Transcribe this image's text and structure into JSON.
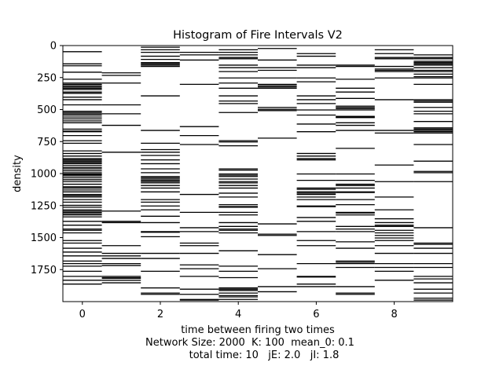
{
  "chart_data": {
    "type": "heatmap",
    "title": "Histogram of Fire Intervals V2",
    "xlabel": "time between firing two times",
    "ylabel": "density",
    "caption_lines": [
      "Network Size: 2000  K: 100  mean_0: 0.1",
      "total time: 10   jE: 2.0   jI: 1.8"
    ],
    "x_ticks": [
      0,
      2,
      4,
      6,
      8
    ],
    "y_ticks": [
      0,
      250,
      500,
      750,
      1000,
      1250,
      1500,
      1750
    ],
    "xlim": [
      -0.5,
      9.5
    ],
    "ylim": [
      0,
      2000
    ],
    "y_inverted": true,
    "columns": [
      {
        "x": 0,
        "rows": [
          45,
          140,
          155,
          205,
          260,
          290,
          300,
          310,
          320,
          330,
          340,
          360,
          370,
          400,
          420,
          460,
          510,
          520,
          530,
          540,
          555,
          570,
          585,
          600,
          650,
          665,
          670,
          700,
          740,
          760,
          820,
          840,
          860,
          880,
          890,
          900,
          910,
          920,
          935,
          950,
          960,
          975,
          990,
          1000,
          1005,
          1015,
          1030,
          1045,
          1060,
          1080,
          1100,
          1110,
          1125,
          1140,
          1160,
          1170,
          1180,
          1200,
          1220,
          1245,
          1260,
          1280,
          1290,
          1300,
          1310,
          1320,
          1335,
          1370,
          1400,
          1430,
          1440,
          1460,
          1520,
          1540,
          1580,
          1610,
          1640,
          1680,
          1700,
          1720,
          1760,
          1800,
          1830,
          1860
        ]
      },
      {
        "x": 1,
        "rows": [
          210,
          230,
          290,
          460,
          530,
          620,
          830,
          1290,
          1370,
          1380,
          1560,
          1620,
          1640,
          1660,
          1700,
          1715,
          1800,
          1810,
          1815,
          1830,
          1850
        ]
      },
      {
        "x": 2,
        "rows": [
          10,
          30,
          50,
          80,
          105,
          130,
          140,
          150,
          160,
          390,
          660,
          760,
          810,
          830,
          855,
          890,
          920,
          960,
          990,
          1020,
          1030,
          1040,
          1050,
          1060,
          1070,
          1090,
          1110,
          1140,
          1200,
          1220,
          1250,
          1280,
          1330,
          1380,
          1450,
          1455,
          1490,
          1620,
          1660,
          1760,
          1890,
          1930,
          1940
        ]
      },
      {
        "x": 3,
        "rows": [
          50,
          70,
          110,
          300,
          630,
          700,
          770,
          1160,
          1300,
          1420,
          1450,
          1540,
          1560,
          1620,
          1710,
          1740,
          1800,
          1900,
          1940,
          1980,
          1985
        ]
      },
      {
        "x": 4,
        "rows": [
          30,
          50,
          70,
          90,
          100,
          150,
          170,
          200,
          250,
          290,
          330,
          390,
          430,
          450,
          520,
          740,
          750,
          780,
          960,
          970,
          1000,
          1010,
          1020,
          1040,
          1060,
          1070,
          1090,
          1110,
          1150,
          1180,
          1240,
          1255,
          1260,
          1300,
          1320,
          1380,
          1410,
          1430,
          1440,
          1460,
          1600,
          1720,
          1760,
          1810,
          1890,
          1900,
          1910,
          1930,
          1950,
          1960,
          1980
        ]
      },
      {
        "x": 5,
        "rows": [
          20,
          110,
          170,
          190,
          250,
          300,
          310,
          320,
          330,
          480,
          495,
          505,
          720,
          1390,
          1470,
          1480,
          1630,
          1740,
          1880,
          1920
        ]
      },
      {
        "x": 6,
        "rows": [
          60,
          80,
          150,
          170,
          250,
          280,
          390,
          420,
          450,
          500,
          540,
          610,
          670,
          840,
          860,
          880,
          890,
          1000,
          1050,
          1110,
          1120,
          1140,
          1150,
          1160,
          1180,
          1200,
          1250,
          1255,
          1340,
          1370,
          1450,
          1520,
          1560,
          1700,
          1800,
          1805,
          1860,
          1880
        ]
      },
      {
        "x": 7,
        "rows": [
          150,
          160,
          260,
          330,
          360,
          410,
          470,
          480,
          490,
          500,
          550,
          555,
          560,
          600,
          620,
          660,
          800,
          1000,
          1050,
          1080,
          1090,
          1110,
          1140,
          1145,
          1200,
          1240,
          1300,
          1305,
          1320,
          1410,
          1430,
          1450,
          1530,
          1580,
          1680,
          1690,
          1700,
          1730,
          1880,
          1930,
          1940
        ]
      },
      {
        "x": 8,
        "rows": [
          30,
          60,
          90,
          100,
          160,
          180,
          190,
          200,
          250,
          420,
          660,
          680,
          930,
          1060,
          1180,
          1280,
          1350,
          1380,
          1400,
          1410,
          1440,
          1460,
          1480,
          1500,
          1520,
          1560,
          1620,
          1700,
          1730,
          1760,
          1830
        ]
      },
      {
        "x": 9,
        "rows": [
          70,
          90,
          100,
          120,
          130,
          140,
          150,
          170,
          190,
          200,
          220,
          240,
          250,
          300,
          420,
          430,
          440,
          480,
          510,
          530,
          590,
          640,
          650,
          660,
          670,
          680,
          770,
          900,
          980,
          990,
          1060,
          1420,
          1540,
          1550,
          1580,
          1620,
          1700,
          1730,
          1800,
          1820,
          1850,
          1900,
          1930,
          1970,
          1985
        ]
      }
    ]
  }
}
